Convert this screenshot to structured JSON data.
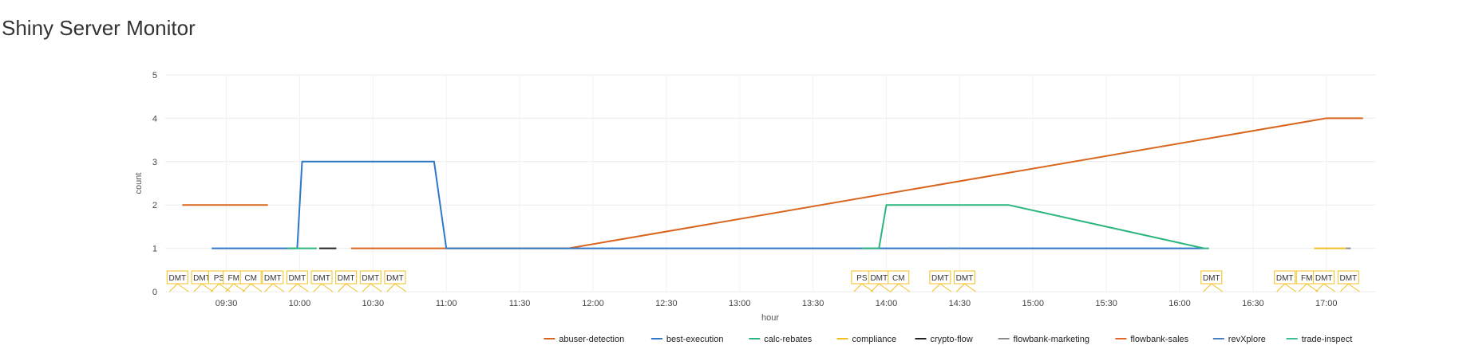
{
  "page": {
    "title": "Shiny Server Monitor"
  },
  "chart_data": {
    "type": "line",
    "xlabel": "hour",
    "ylabel": "count",
    "xlim": [
      "09:05",
      "17:20"
    ],
    "ylim": [
      0,
      5
    ],
    "grid": true,
    "legend_position": "bottom-right",
    "x_ticks": [
      "09:30",
      "10:00",
      "10:30",
      "11:00",
      "11:30",
      "12:00",
      "12:30",
      "13:00",
      "13:30",
      "14:00",
      "14:30",
      "15:00",
      "15:30",
      "16:00",
      "16:30",
      "17:00"
    ],
    "y_ticks": [
      0,
      1,
      2,
      3,
      4,
      5
    ],
    "series": [
      {
        "name": "abuser-detection",
        "color": "#d9661f",
        "segments": [
          [
            [
              "09:12",
              2
            ],
            [
              "09:47",
              2
            ]
          ],
          [
            [
              "10:21",
              1
            ],
            [
              "11:50",
              1
            ],
            [
              "17:00",
              4
            ],
            [
              "17:15",
              4
            ]
          ]
        ]
      },
      {
        "name": "best-execution",
        "color": "#2f78c8",
        "segments": [
          [
            [
              "09:24",
              1
            ],
            [
              "09:55",
              1
            ],
            [
              "09:59",
              1
            ],
            [
              "10:01",
              3
            ],
            [
              "10:55",
              3
            ],
            [
              "11:00",
              1
            ],
            [
              "16:10",
              1
            ]
          ]
        ]
      },
      {
        "name": "calc-rebates",
        "color": "#2cb67d",
        "segments": [
          [
            [
              "09:55",
              1
            ],
            [
              "10:07",
              1
            ]
          ],
          [
            [
              "13:50",
              1
            ],
            [
              "13:57",
              1
            ],
            [
              "14:00",
              2
            ],
            [
              "14:50",
              2
            ],
            [
              "16:10",
              1
            ],
            [
              "16:12",
              1
            ]
          ]
        ]
      },
      {
        "name": "compliance",
        "color": "#f0c020",
        "segments": [
          [
            [
              "16:55",
              1
            ],
            [
              "17:08",
              1
            ]
          ]
        ]
      },
      {
        "name": "crypto-flow",
        "color": "#222222",
        "segments": [
          [
            [
              "10:08",
              1
            ],
            [
              "10:15",
              1
            ]
          ]
        ]
      },
      {
        "name": "flowbank-marketing",
        "color": "#8c8c8c",
        "segments": [
          [
            [
              "17:08",
              1
            ],
            [
              "17:10",
              1
            ]
          ]
        ]
      },
      {
        "name": "flowbank-sales",
        "color": "#e06a2c",
        "segments": []
      },
      {
        "name": "revXplore",
        "color": "#4a7fc1",
        "segments": [
          [
            [
              "14:25",
              1
            ],
            [
              "14:30",
              1
            ]
          ]
        ]
      },
      {
        "name": "trade-inspect",
        "color": "#3cc08f",
        "segments": []
      }
    ],
    "annotations": [
      {
        "label": "DMT",
        "at": "09:10"
      },
      {
        "label": "DMT",
        "at": "09:20"
      },
      {
        "label": "PS",
        "at": "09:27"
      },
      {
        "label": "FM",
        "at": "09:33"
      },
      {
        "label": "CM",
        "at": "09:40"
      },
      {
        "label": "DMT",
        "at": "09:49"
      },
      {
        "label": "DMT",
        "at": "09:59"
      },
      {
        "label": "DMT",
        "at": "10:09"
      },
      {
        "label": "DMT",
        "at": "10:19"
      },
      {
        "label": "DMT",
        "at": "10:29"
      },
      {
        "label": "DMT",
        "at": "10:39"
      },
      {
        "label": "PS",
        "at": "13:50"
      },
      {
        "label": "DMT",
        "at": "13:57"
      },
      {
        "label": "CM",
        "at": "14:05"
      },
      {
        "label": "DMT",
        "at": "14:22"
      },
      {
        "label": "DMT",
        "at": "14:32"
      },
      {
        "label": "DMT",
        "at": "16:13"
      },
      {
        "label": "DMT",
        "at": "16:43"
      },
      {
        "label": "FM",
        "at": "16:52"
      },
      {
        "label": "DMT",
        "at": "16:59"
      },
      {
        "label": "DMT",
        "at": "17:09"
      }
    ]
  }
}
